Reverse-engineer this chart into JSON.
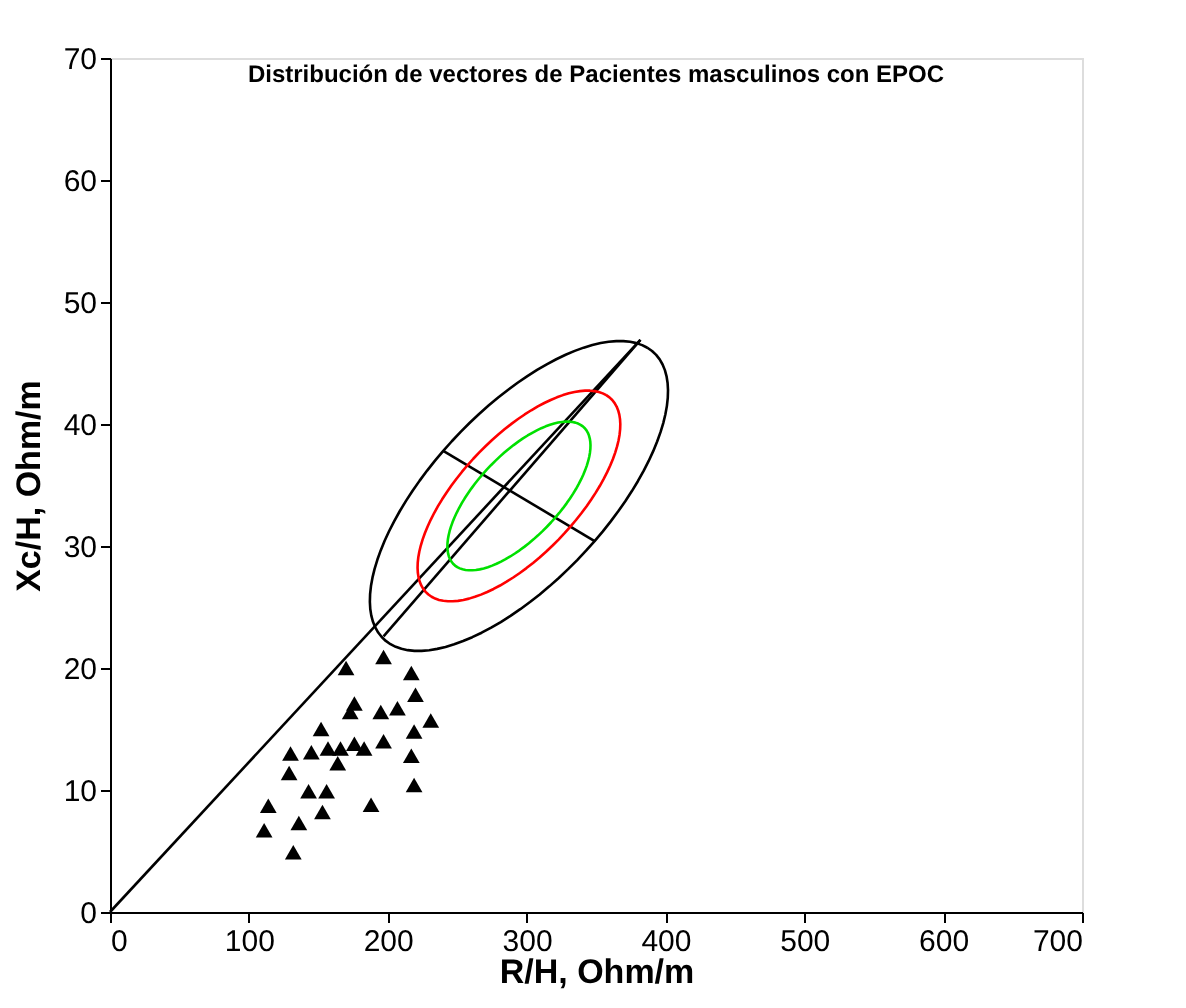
{
  "chart_data": {
    "type": "scatter",
    "title": "Distribución de vectores de  Pacientes masculinos con EPOC",
    "xlabel": "R/H, Ohm/m",
    "ylabel": "Xc/H, Ohm/m",
    "xlim": [
      0,
      700
    ],
    "xticks": [
      0,
      100,
      200,
      300,
      400,
      500,
      600,
      700
    ],
    "ylim": [
      0,
      70
    ],
    "yticks": [
      0,
      10,
      20,
      30,
      40,
      50,
      60,
      70
    ],
    "grid": false,
    "series": [
      {
        "marker": "triangle",
        "color": "#000000",
        "x": [
          170,
          197,
          217,
          176,
          173,
          195,
          207,
          220,
          231,
          219,
          152,
          197,
          217,
          130,
          145,
          157,
          166,
          176,
          183,
          164,
          129,
          143,
          156,
          219,
          114,
          153,
          188,
          136,
          111,
          132
        ],
        "values": [
          20.0,
          20.9,
          19.6,
          17.1,
          16.4,
          16.4,
          16.7,
          17.8,
          15.7,
          14.8,
          15.0,
          14.0,
          12.8,
          13.0,
          13.1,
          13.4,
          13.4,
          13.8,
          13.4,
          12.2,
          11.4,
          9.9,
          9.9,
          10.4,
          8.7,
          8.2,
          8.8,
          7.3,
          6.7,
          4.9
        ]
      },
      {
        "type": "line",
        "marker": "none",
        "line_style": "solid",
        "color": "#000000",
        "x": [
          0,
          382
        ],
        "values": [
          0,
          46.9
        ]
      },
      {
        "type": "line",
        "marker": "none",
        "line_style": "solid",
        "color": "#000000",
        "x": [
          197,
          382
        ],
        "values": [
          22.6,
          46.9
        ]
      },
      {
        "type": "line",
        "marker": "none",
        "line_style": "solid",
        "color": "#000000",
        "x": [
          240,
          349
        ],
        "values": [
          37.8,
          30.4
        ]
      }
    ]
  }
}
